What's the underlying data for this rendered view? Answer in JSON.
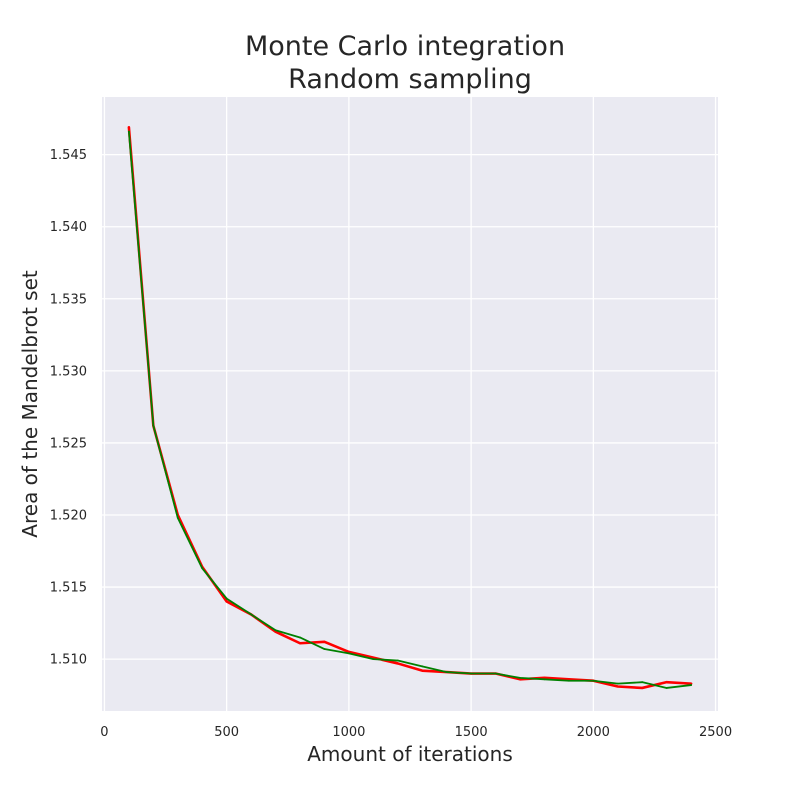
{
  "chart_data": {
    "type": "line",
    "title_lines": [
      "Monte Carlo integration",
      "Random sampling"
    ],
    "xlabel": "Amount of iterations",
    "ylabel": "Area of the Mandelbrot set",
    "xlim": [
      -10,
      2510
    ],
    "ylim": [
      1.5064,
      1.549
    ],
    "xticks": [
      0,
      500,
      1000,
      1500,
      2000,
      2500
    ],
    "xtick_labels": [
      "0",
      "500",
      "1000",
      "1500",
      "2000",
      "2500"
    ],
    "yticks": [
      1.51,
      1.515,
      1.52,
      1.525,
      1.53,
      1.535,
      1.54,
      1.545
    ],
    "ytick_labels": [
      "1.510",
      "1.515",
      "1.520",
      "1.525",
      "1.530",
      "1.535",
      "1.540",
      "1.545"
    ],
    "grid": true,
    "legend": "none",
    "colors": {
      "background": "#eaeaf2",
      "grid": "#ffffff",
      "text": "#262626"
    },
    "x": [
      100,
      200,
      300,
      400,
      500,
      600,
      700,
      800,
      900,
      1000,
      1100,
      1200,
      1300,
      1400,
      1500,
      1600,
      1700,
      1800,
      1900,
      2000,
      2100,
      2200,
      2300,
      2400
    ],
    "series": [
      {
        "color": "#ff0000",
        "values": [
          1.5469,
          1.5262,
          1.52,
          1.5164,
          1.514,
          1.5131,
          1.5119,
          1.5111,
          1.5112,
          1.5105,
          1.5101,
          1.5097,
          1.5092,
          1.5091,
          1.509,
          1.509,
          1.5086,
          1.5087,
          1.5086,
          1.5085,
          1.5081,
          1.508,
          1.5084,
          1.5083
        ]
      },
      {
        "color": "#008000",
        "values": [
          1.5466,
          1.5262,
          1.5198,
          1.5163,
          1.5142,
          1.5131,
          1.512,
          1.5115,
          1.5107,
          1.5104,
          1.51,
          1.5099,
          1.5095,
          1.5091,
          1.509,
          1.509,
          1.5087,
          1.5086,
          1.5085,
          1.5085,
          1.5083,
          1.5084,
          1.508,
          1.5082
        ]
      }
    ]
  }
}
